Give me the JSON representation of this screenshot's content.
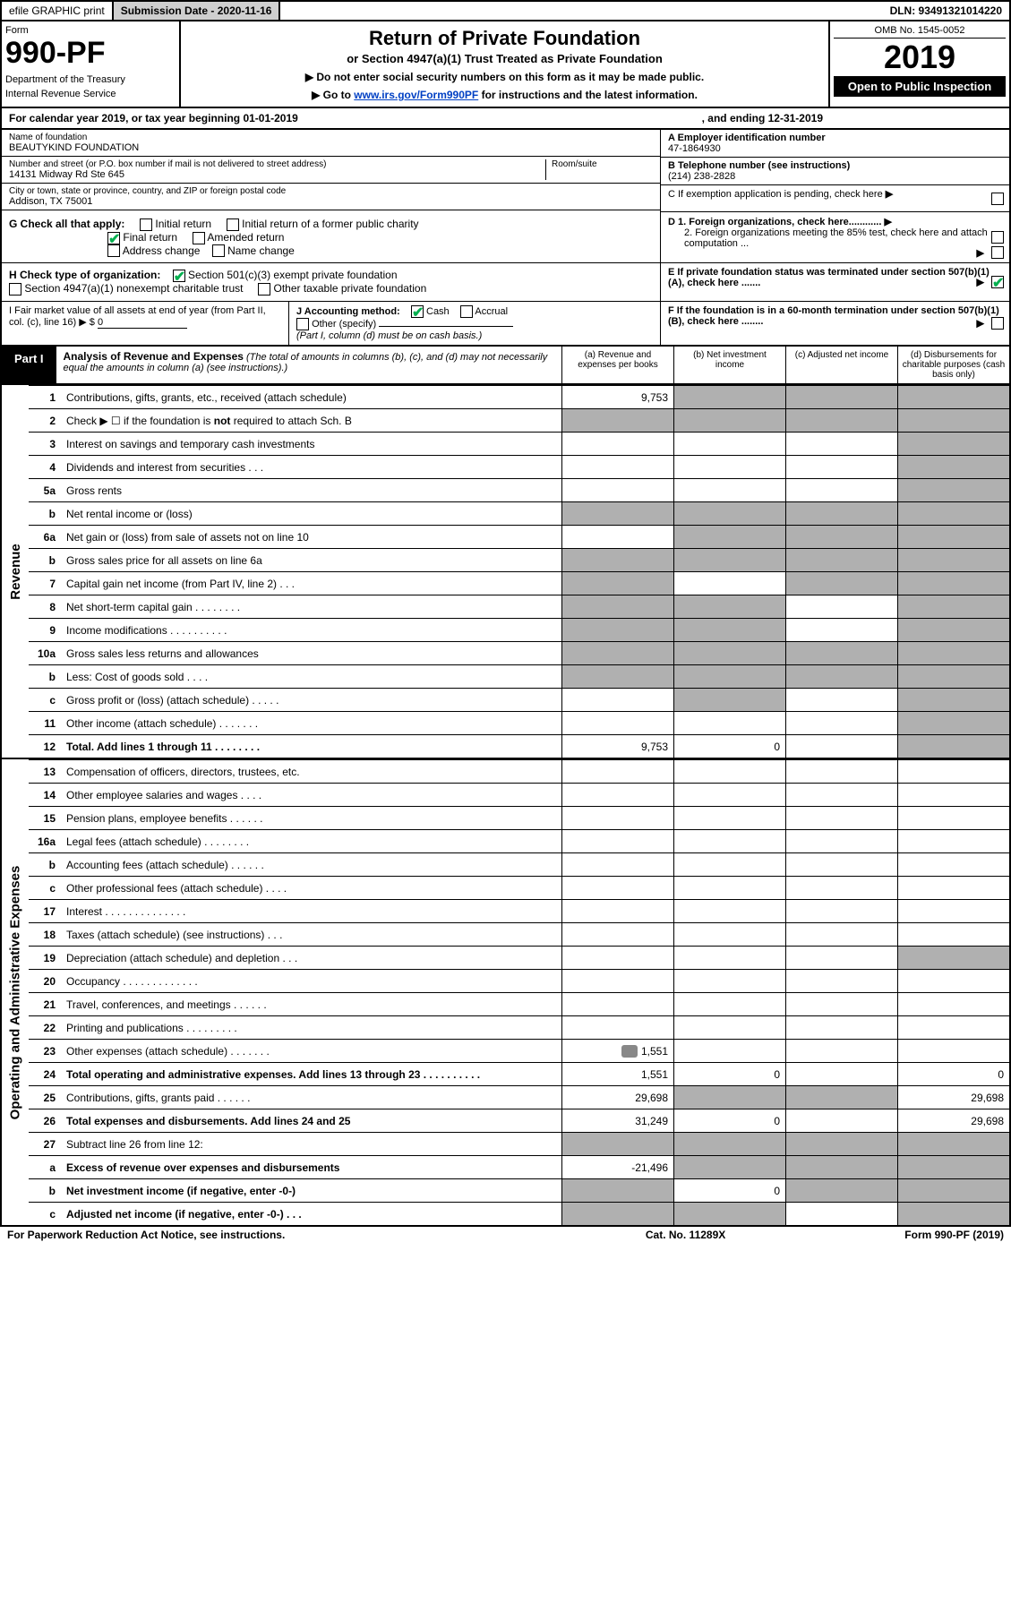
{
  "topbar": {
    "efile": "efile GRAPHIC print",
    "subdate_label": "Submission Date - 2020-11-16",
    "dln": "DLN: 93491321014220"
  },
  "header": {
    "form_label": "Form",
    "form_number": "990-PF",
    "dept": "Department of the Treasury",
    "irs": "Internal Revenue Service",
    "title": "Return of Private Foundation",
    "subtitle": "or Section 4947(a)(1) Trust Treated as Private Foundation",
    "note1": "▶ Do not enter social security numbers on this form as it may be made public.",
    "note2_pre": "▶ Go to ",
    "note2_link": "www.irs.gov/Form990PF",
    "note2_post": " for instructions and the latest information.",
    "omb": "OMB No. 1545-0052",
    "year": "2019",
    "inspect": "Open to Public Inspection"
  },
  "calyear": {
    "left": "For calendar year 2019, or tax year beginning 01-01-2019",
    "right": ", and ending 12-31-2019"
  },
  "info": {
    "name_label": "Name of foundation",
    "name": "BEAUTYKIND FOUNDATION",
    "addr_label": "Number and street (or P.O. box number if mail is not delivered to street address)",
    "addr": "14131 Midway Rd Ste 645",
    "room_label": "Room/suite",
    "city_label": "City or town, state or province, country, and ZIP or foreign postal code",
    "city": "Addison, TX  75001",
    "a_label": "A Employer identification number",
    "a_val": "47-1864930",
    "b_label": "B Telephone number (see instructions)",
    "b_val": "(214) 238-2828",
    "c_label": "C If exemption application is pending, check here",
    "d1": "D 1. Foreign organizations, check here............",
    "d2": "2. Foreign organizations meeting the 85% test, check here and attach computation ...",
    "e_label": "E  If private foundation status was terminated under section 507(b)(1)(A), check here .......",
    "f_label": "F  If the foundation is in a 60-month termination under section 507(b)(1)(B), check here ........"
  },
  "g": {
    "label": "G Check all that apply:",
    "initial": "Initial return",
    "initial_former": "Initial return of a former public charity",
    "final": "Final return",
    "amended": "Amended return",
    "address": "Address change",
    "name_change": "Name change"
  },
  "h": {
    "label": "H Check type of organization:",
    "s501": "Section 501(c)(3) exempt private foundation",
    "s4947": "Section 4947(a)(1) nonexempt charitable trust",
    "other": "Other taxable private foundation"
  },
  "i_label": "I Fair market value of all assets at end of year (from Part II, col. (c), line 16) ▶ $",
  "i_val": "0",
  "j": {
    "label": "J Accounting method:",
    "cash": "Cash",
    "accrual": "Accrual",
    "other": "Other (specify)",
    "note": "(Part I, column (d) must be on cash basis.)"
  },
  "part1": {
    "label": "Part I",
    "title": "Analysis of Revenue and Expenses",
    "note": "(The total of amounts in columns (b), (c), and (d) may not necessarily equal the amounts in column (a) (see instructions).)",
    "col_a": "(a) Revenue and expenses per books",
    "col_b": "(b) Net investment income",
    "col_c": "(c) Adjusted net income",
    "col_d": "(d) Disbursements for charitable purposes (cash basis only)"
  },
  "sections": {
    "revenue": "Revenue",
    "expenses": "Operating and Administrative Expenses"
  },
  "rows": [
    {
      "n": "1",
      "d": "Contributions, gifts, grants, etc., received (attach schedule)",
      "a": "9,753",
      "shade": [
        false,
        true,
        true,
        true
      ]
    },
    {
      "n": "2",
      "d": "Check ▶ ☐ if the foundation is not required to attach Sch. B",
      "bold_word": "not",
      "shade": [
        true,
        true,
        true,
        true
      ]
    },
    {
      "n": "3",
      "d": "Interest on savings and temporary cash investments",
      "shade": [
        false,
        false,
        false,
        true
      ]
    },
    {
      "n": "4",
      "d": "Dividends and interest from securities   .   .   .",
      "shade": [
        false,
        false,
        false,
        true
      ]
    },
    {
      "n": "5a",
      "d": "Gross rents",
      "shade": [
        false,
        false,
        false,
        true
      ]
    },
    {
      "n": "b",
      "d": "Net rental income or (loss)",
      "shade": [
        true,
        true,
        true,
        true
      ]
    },
    {
      "n": "6a",
      "d": "Net gain or (loss) from sale of assets not on line 10",
      "shade": [
        false,
        true,
        true,
        true
      ]
    },
    {
      "n": "b",
      "d": "Gross sales price for all assets on line 6a",
      "shade": [
        true,
        true,
        true,
        true
      ]
    },
    {
      "n": "7",
      "d": "Capital gain net income (from Part IV, line 2)   .   .   .",
      "shade": [
        true,
        false,
        true,
        true
      ]
    },
    {
      "n": "8",
      "d": "Net short-term capital gain   .   .   .   .   .   .   .   .",
      "shade": [
        true,
        true,
        false,
        true
      ]
    },
    {
      "n": "9",
      "d": "Income modifications   .   .   .   .   .   .   .   .   .   .",
      "shade": [
        true,
        true,
        false,
        true
      ]
    },
    {
      "n": "10a",
      "d": "Gross sales less returns and allowances",
      "shade": [
        true,
        true,
        true,
        true
      ]
    },
    {
      "n": "b",
      "d": "Less: Cost of goods sold    .   .   .   .",
      "shade": [
        true,
        true,
        true,
        true
      ]
    },
    {
      "n": "c",
      "d": "Gross profit or (loss) (attach schedule)   .   .   .   .   .",
      "shade": [
        false,
        true,
        false,
        true
      ]
    },
    {
      "n": "11",
      "d": "Other income (attach schedule)   .   .   .   .   .   .   .",
      "shade": [
        false,
        false,
        false,
        true
      ]
    },
    {
      "n": "12",
      "d": "Total. Add lines 1 through 11   .   .   .   .   .   .   .   .",
      "bold": true,
      "a": "9,753",
      "b": "0",
      "shade": [
        false,
        false,
        false,
        true
      ]
    }
  ],
  "exp_rows": [
    {
      "n": "13",
      "d": "Compensation of officers, directors, trustees, etc.",
      "shade": [
        false,
        false,
        false,
        false
      ]
    },
    {
      "n": "14",
      "d": "Other employee salaries and wages    .   .   .   .",
      "shade": [
        false,
        false,
        false,
        false
      ]
    },
    {
      "n": "15",
      "d": "Pension plans, employee benefits   .   .   .   .   .   .",
      "shade": [
        false,
        false,
        false,
        false
      ]
    },
    {
      "n": "16a",
      "d": "Legal fees (attach schedule)  .   .   .   .   .   .   .   .",
      "shade": [
        false,
        false,
        false,
        false
      ]
    },
    {
      "n": "b",
      "d": "Accounting fees (attach schedule)   .   .   .   .   .   .",
      "shade": [
        false,
        false,
        false,
        false
      ]
    },
    {
      "n": "c",
      "d": "Other professional fees (attach schedule)    .   .   .   .",
      "shade": [
        false,
        false,
        false,
        false
      ]
    },
    {
      "n": "17",
      "d": "Interest   .   .   .   .   .   .   .   .   .   .   .   .   .   .",
      "shade": [
        false,
        false,
        false,
        false
      ]
    },
    {
      "n": "18",
      "d": "Taxes (attach schedule) (see instructions)    .   .   .",
      "shade": [
        false,
        false,
        false,
        false
      ]
    },
    {
      "n": "19",
      "d": "Depreciation (attach schedule) and depletion   .   .   .",
      "shade": [
        false,
        false,
        false,
        true
      ]
    },
    {
      "n": "20",
      "d": "Occupancy  .   .   .   .   .   .   .   .   .   .   .   .   .",
      "shade": [
        false,
        false,
        false,
        false
      ]
    },
    {
      "n": "21",
      "d": "Travel, conferences, and meetings  .   .   .   .   .   .",
      "shade": [
        false,
        false,
        false,
        false
      ]
    },
    {
      "n": "22",
      "d": "Printing and publications  .   .   .   .   .   .   .   .   .",
      "shade": [
        false,
        false,
        false,
        false
      ]
    },
    {
      "n": "23",
      "d": "Other expenses (attach schedule)  .   .   .   .   .   .   .",
      "a": "1,551",
      "icon": true,
      "shade": [
        false,
        false,
        false,
        false
      ]
    },
    {
      "n": "24",
      "d": "Total operating and administrative expenses. Add lines 13 through 23   .   .   .   .   .   .   .   .   .   .",
      "bold": true,
      "a": "1,551",
      "b": "0",
      "dd": "0",
      "shade": [
        false,
        false,
        false,
        false
      ]
    },
    {
      "n": "25",
      "d": "Contributions, gifts, grants paid     .   .   .   .   .   .",
      "a": "29,698",
      "dd": "29,698",
      "shade": [
        false,
        true,
        true,
        false
      ]
    },
    {
      "n": "26",
      "d": "Total expenses and disbursements. Add lines 24 and 25",
      "bold": true,
      "a": "31,249",
      "b": "0",
      "dd": "29,698",
      "shade": [
        false,
        false,
        false,
        false
      ]
    },
    {
      "n": "27",
      "d": "Subtract line 26 from line 12:",
      "shade": [
        true,
        true,
        true,
        true
      ]
    },
    {
      "n": "a",
      "d": "Excess of revenue over expenses and disbursements",
      "bold": true,
      "a": "-21,496",
      "shade": [
        false,
        true,
        true,
        true
      ]
    },
    {
      "n": "b",
      "d": "Net investment income (if negative, enter -0-)",
      "bold": true,
      "b": "0",
      "shade": [
        true,
        false,
        true,
        true
      ]
    },
    {
      "n": "c",
      "d": "Adjusted net income (if negative, enter -0-)   .   .   .",
      "bold": true,
      "shade": [
        true,
        true,
        false,
        true
      ]
    }
  ],
  "footer": {
    "left": "For Paperwork Reduction Act Notice, see instructions.",
    "mid": "Cat. No. 11289X",
    "right": "Form 990-PF (2019)"
  }
}
